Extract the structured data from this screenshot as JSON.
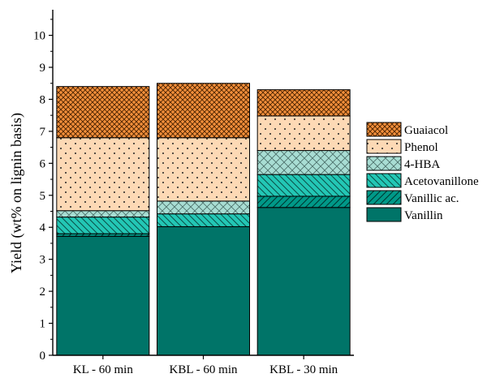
{
  "chart_data": {
    "type": "bar",
    "stacked": true,
    "categories": [
      "KL - 60 min",
      "KBL - 60 min",
      "KBL - 30 min"
    ],
    "ylabel": "Yield (wt% on lignin basis)",
    "xlabel": "",
    "ylim": [
      0,
      10.8
    ],
    "yticks": [
      "0",
      "1",
      "2",
      "3",
      "4",
      "5",
      "6",
      "7",
      "8",
      "9",
      "10"
    ],
    "grid": false,
    "legend_position": "right",
    "series": [
      {
        "name": "Vanillin",
        "values": [
          3.72,
          4.02,
          4.62
        ],
        "color": "#007468",
        "pattern": "solid"
      },
      {
        "name": "Vanillic ac.",
        "values": [
          0.08,
          0.0,
          0.35
        ],
        "color": "#009988",
        "pattern": "diagonal-hatch"
      },
      {
        "name": "Acetovanillone",
        "values": [
          0.52,
          0.4,
          0.68
        ],
        "color": "#23c7b5",
        "pattern": "back-diagonal-hatch"
      },
      {
        "name": "4-HBA",
        "values": [
          0.2,
          0.4,
          0.75
        ],
        "color": "#a8ddd3",
        "pattern": "cross-hatch"
      },
      {
        "name": "Phenol",
        "values": [
          2.28,
          1.98,
          1.08
        ],
        "color": "#fdd9b5",
        "pattern": "dots"
      },
      {
        "name": "Guaiacol",
        "values": [
          1.6,
          1.7,
          0.82
        ],
        "color": "#f28f3b",
        "pattern": "crosshatch-dense"
      }
    ]
  }
}
